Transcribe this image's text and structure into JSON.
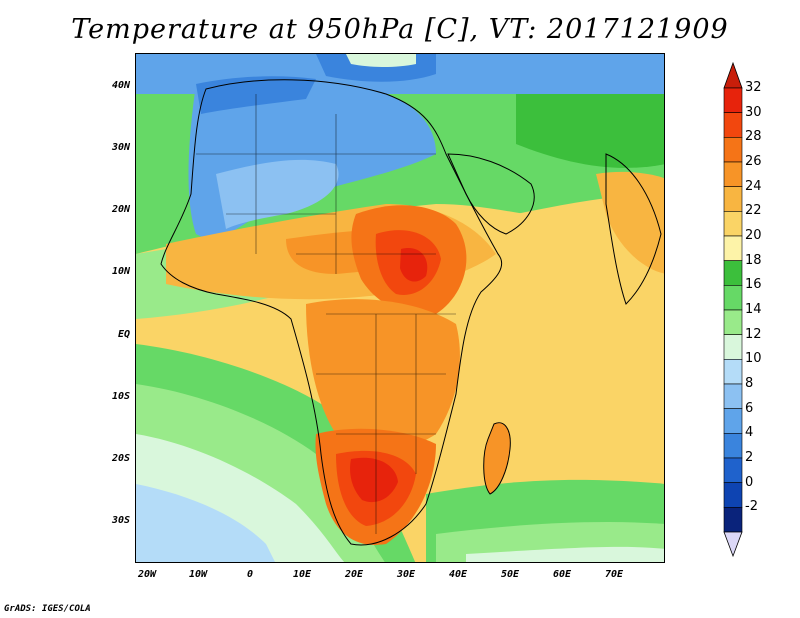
{
  "title": "Temperature at 950hPa [C], VT: 2017121909",
  "credit": "GrADS: IGES/COLA",
  "lat_labels": [
    "40N",
    "30N",
    "20N",
    "10N",
    "EQ",
    "10S",
    "20S",
    "30S"
  ],
  "lon_labels": [
    "20W",
    "10W",
    "0",
    "10E",
    "20E",
    "30E",
    "40E",
    "50E",
    "60E",
    "70E"
  ],
  "colorbar": {
    "labels": [
      "32",
      "30",
      "28",
      "26",
      "24",
      "22",
      "20",
      "18",
      "16",
      "14",
      "12",
      "10",
      "8",
      "6",
      "4",
      "2",
      "0",
      "-2"
    ],
    "colors": [
      "#e7230c",
      "#f2470e",
      "#f57417",
      "#f79427",
      "#f8b541",
      "#fad466",
      "#fdf3a8",
      "#3cbf3c",
      "#66d966",
      "#99ea8a",
      "#d9f7dc",
      "#b4dcf8",
      "#8cc1f2",
      "#5fa4ea",
      "#3a84dd",
      "#1f62cc",
      "#0e44b2",
      "#0a237b"
    ]
  },
  "colors": {
    "sea": "#9ccbf0",
    "land_cold": "#5fa4ea",
    "land_hot": "#e7230c"
  }
}
